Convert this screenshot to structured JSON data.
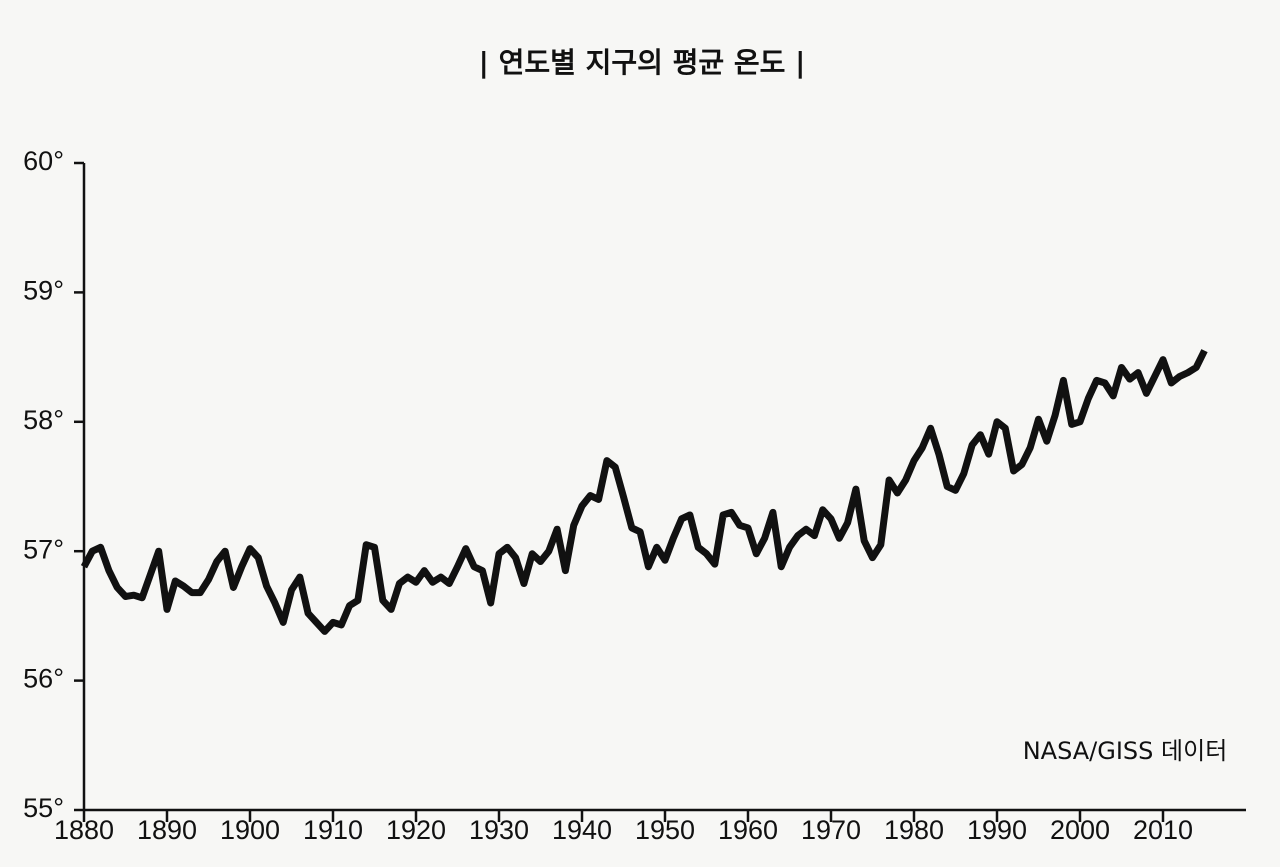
{
  "chart_data": {
    "type": "line",
    "title": "| 연도별 지구의 평균 온도 |",
    "annotation": "NASA/GISS 데이터",
    "x": [
      1880,
      1881,
      1882,
      1883,
      1884,
      1885,
      1886,
      1887,
      1888,
      1889,
      1890,
      1891,
      1892,
      1893,
      1894,
      1895,
      1896,
      1897,
      1898,
      1899,
      1900,
      1901,
      1902,
      1903,
      1904,
      1905,
      1906,
      1907,
      1908,
      1909,
      1910,
      1911,
      1912,
      1913,
      1914,
      1915,
      1916,
      1917,
      1918,
      1919,
      1920,
      1921,
      1922,
      1923,
      1924,
      1925,
      1926,
      1927,
      1928,
      1929,
      1930,
      1931,
      1932,
      1933,
      1934,
      1935,
      1936,
      1937,
      1938,
      1939,
      1940,
      1941,
      1942,
      1943,
      1944,
      1945,
      1946,
      1947,
      1948,
      1949,
      1950,
      1951,
      1952,
      1953,
      1954,
      1955,
      1956,
      1957,
      1958,
      1959,
      1960,
      1961,
      1962,
      1963,
      1964,
      1965,
      1966,
      1967,
      1968,
      1969,
      1970,
      1971,
      1972,
      1973,
      1974,
      1975,
      1976,
      1977,
      1978,
      1979,
      1980,
      1981,
      1982,
      1983,
      1984,
      1985,
      1986,
      1987,
      1988,
      1989,
      1990,
      1991,
      1992,
      1993,
      1994,
      1995,
      1996,
      1997,
      1998,
      1999,
      2000,
      2001,
      2002,
      2003,
      2004,
      2005,
      2006,
      2007,
      2008,
      2009,
      2010,
      2011,
      2012,
      2013,
      2014,
      2015
    ],
    "series": [
      {
        "color": "#111111",
        "values": [
          56.88,
          57.0,
          57.03,
          56.85,
          56.72,
          56.65,
          56.66,
          56.64,
          56.82,
          57.0,
          56.55,
          56.77,
          56.73,
          56.68,
          56.68,
          56.78,
          56.92,
          57.0,
          56.72,
          56.88,
          57.02,
          56.95,
          56.73,
          56.6,
          56.45,
          56.7,
          56.8,
          56.52,
          56.45,
          56.38,
          56.45,
          56.43,
          56.58,
          56.62,
          57.05,
          57.03,
          56.62,
          56.55,
          56.75,
          56.8,
          56.76,
          56.85,
          56.76,
          56.8,
          56.75,
          56.88,
          57.02,
          56.88,
          56.85,
          56.6,
          56.98,
          57.03,
          56.95,
          56.75,
          56.98,
          56.92,
          57.0,
          57.17,
          56.85,
          57.2,
          57.35,
          57.43,
          57.4,
          57.7,
          57.65,
          57.42,
          57.18,
          57.15,
          56.88,
          57.03,
          56.93,
          57.1,
          57.25,
          57.28,
          57.03,
          56.98,
          56.9,
          57.28,
          57.3,
          57.2,
          57.18,
          56.98,
          57.1,
          57.3,
          56.88,
          57.03,
          57.12,
          57.17,
          57.12,
          57.32,
          57.25,
          57.1,
          57.22,
          57.48,
          57.08,
          56.95,
          57.05,
          57.55,
          57.45,
          57.55,
          57.7,
          57.8,
          57.95,
          57.75,
          57.5,
          57.47,
          57.6,
          57.82,
          57.9,
          57.75,
          58.0,
          57.95,
          57.62,
          57.67,
          57.8,
          58.02,
          57.85,
          58.05,
          58.32,
          57.98,
          58.0,
          58.18,
          58.32,
          58.3,
          58.2,
          58.42,
          58.33,
          58.38,
          58.22,
          58.35,
          58.48,
          58.3,
          58.35,
          58.38,
          58.42,
          58.55
        ]
      }
    ],
    "xlim": [
      1880,
      2020
    ],
    "xticks": [
      1880,
      1890,
      1900,
      1910,
      1920,
      1930,
      1940,
      1950,
      1960,
      1970,
      1980,
      1990,
      2000,
      2010
    ],
    "ylim": [
      55,
      60
    ],
    "yticks": [
      {
        "value": 55,
        "label": "55°"
      },
      {
        "value": 56,
        "label": "56°"
      },
      {
        "value": 57,
        "label": "57°"
      },
      {
        "value": 58,
        "label": "58°"
      },
      {
        "value": 59,
        "label": "59°"
      },
      {
        "value": 60,
        "label": "60°"
      }
    ],
    "grid": false
  }
}
